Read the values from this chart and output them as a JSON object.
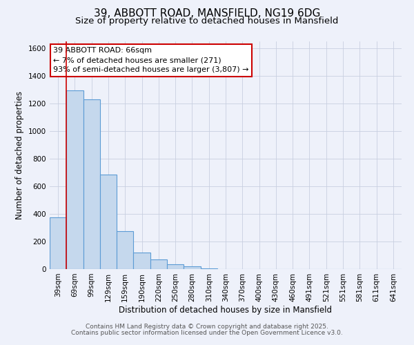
{
  "title": "39, ABBOTT ROAD, MANSFIELD, NG19 6DG",
  "subtitle": "Size of property relative to detached houses in Mansfield",
  "xlabel": "Distribution of detached houses by size in Mansfield",
  "ylabel": "Number of detached properties",
  "bar_color": "#c5d8ed",
  "bar_edge_color": "#5b9bd5",
  "background_color": "#eef1fa",
  "grid_color": "#c8cfe0",
  "annotation_box_color": "#ffffff",
  "annotation_border_color": "#cc0000",
  "red_line_color": "#cc0000",
  "categories": [
    "39sqm",
    "69sqm",
    "99sqm",
    "129sqm",
    "159sqm",
    "190sqm",
    "220sqm",
    "250sqm",
    "280sqm",
    "310sqm",
    "340sqm",
    "370sqm",
    "400sqm",
    "430sqm",
    "460sqm",
    "491sqm",
    "521sqm",
    "551sqm",
    "581sqm",
    "611sqm",
    "641sqm"
  ],
  "values": [
    375,
    1295,
    1230,
    685,
    275,
    118,
    70,
    35,
    18,
    5,
    2,
    0,
    0,
    0,
    0,
    0,
    0,
    0,
    0,
    0,
    0
  ],
  "ylim": [
    0,
    1650
  ],
  "yticks": [
    0,
    200,
    400,
    600,
    800,
    1000,
    1200,
    1400,
    1600
  ],
  "red_line_x": 0.5,
  "annotation_line1": "39 ABBOTT ROAD: 66sqm",
  "annotation_line2": "← 7% of detached houses are smaller (271)",
  "annotation_line3": "93% of semi-detached houses are larger (3,807) →",
  "footer_line1": "Contains HM Land Registry data © Crown copyright and database right 2025.",
  "footer_line2": "Contains public sector information licensed under the Open Government Licence v3.0.",
  "title_fontsize": 11,
  "subtitle_fontsize": 9.5,
  "axis_label_fontsize": 8.5,
  "tick_fontsize": 7.5,
  "annotation_fontsize": 8,
  "footer_fontsize": 6.5
}
